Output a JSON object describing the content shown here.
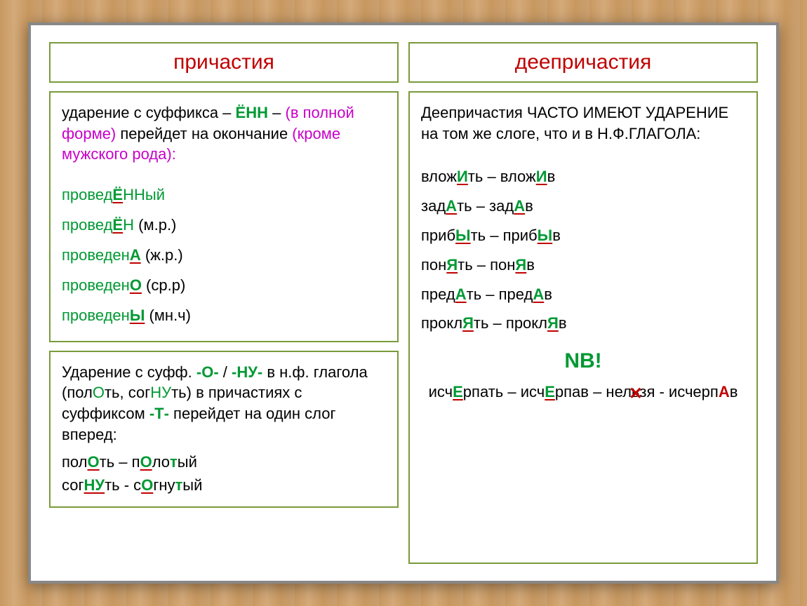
{
  "left": {
    "header": "причастия",
    "rule1": {
      "p1": "ударение с суффикса – ",
      "p1_suffix": "ЁНН",
      "p1_after": " – ",
      "p2_magenta1": "(в полной форме)",
      "p2_mid": " перейдет на окончание ",
      "p2_magenta2": "(кроме мужского рода):"
    },
    "examples1": [
      {
        "pre": "провед",
        "stress": "Ё",
        "post": "ННый",
        "note": ""
      },
      {
        "pre": "провед",
        "stress": "Ё",
        "post": "Н",
        "note": " (м.р.)"
      },
      {
        "pre": "проведен",
        "stress": "А",
        "post": "",
        "note": " (ж.р.)"
      },
      {
        "pre": "проведен",
        "stress": "О",
        "post": "",
        "note": " (ср.р)"
      },
      {
        "pre": "проведен",
        "stress": "Ы",
        "post": "",
        "note": " (мн.ч)"
      }
    ],
    "rule2": {
      "t1": "Ударение с суфф. ",
      "s1": "-О-",
      "t2": " / ",
      "s2": "-НУ-",
      "t3": " в н.ф. глагола (пол",
      "g1": "О",
      "t4": "ть, сог",
      "g2": "НУ",
      "t5": "ть) в причастиях с суффиксом ",
      "s3": "-Т-",
      "t6": " перейдет на один слог вперед:"
    },
    "examples2": [
      {
        "parts": [
          "пол",
          {
            "s": "О"
          },
          "ть – п",
          {
            "s": "О"
          },
          "ло",
          {
            "g": "т"
          },
          "ый"
        ]
      },
      {
        "parts": [
          "сог",
          {
            "s": "НУ"
          },
          "ть - с",
          {
            "s": "О"
          },
          "гну",
          {
            "g": "т"
          },
          "ый"
        ]
      }
    ]
  },
  "right": {
    "header": "деепричастия",
    "rule": {
      "t1": "Деепричастия ЧАСТО ИМЕЮТ УДАРЕНИЕ на том же слоге, что и в Н.Ф.ГЛАГОЛА:"
    },
    "pairs": [
      {
        "l_pre": "влож",
        "l_s": "И",
        "l_post": "ть",
        "r_pre": "влож",
        "r_s": "И",
        "r_post": "в"
      },
      {
        "l_pre": "зад",
        "l_s": "А",
        "l_post": "ть",
        "r_pre": "зад",
        "r_s": "А",
        "r_post": "в"
      },
      {
        "l_pre": "приб",
        "l_s": "Ы",
        "l_post": "ть",
        "r_pre": "приб",
        "r_s": "Ы",
        "r_post": "в"
      },
      {
        "l_pre": "пон",
        "l_s": "Я",
        "l_post": "ть",
        "r_pre": "пон",
        "r_s": "Я",
        "r_post": "в"
      },
      {
        "l_pre": "пред",
        "l_s": "А",
        "l_post": "ть",
        "r_pre": "пред",
        "r_s": "А",
        "r_post": "в"
      },
      {
        "l_pre": "прокл",
        "l_s": "Я",
        "l_post": "ть",
        "r_pre": "прокл",
        "r_s": "Я",
        "r_post": "в"
      }
    ],
    "nb": "NB!",
    "exception": {
      "t1": "исч",
      "s1": "Е",
      "t2": "рпать – исч",
      "s2": "Е",
      "t3": "рпав – нельзя - исчерп",
      "s3": "А",
      "t4": "в"
    }
  },
  "colors": {
    "header_red": "#c00000",
    "green": "#009933",
    "magenta": "#c800c8",
    "border": "#7a9a3a"
  }
}
